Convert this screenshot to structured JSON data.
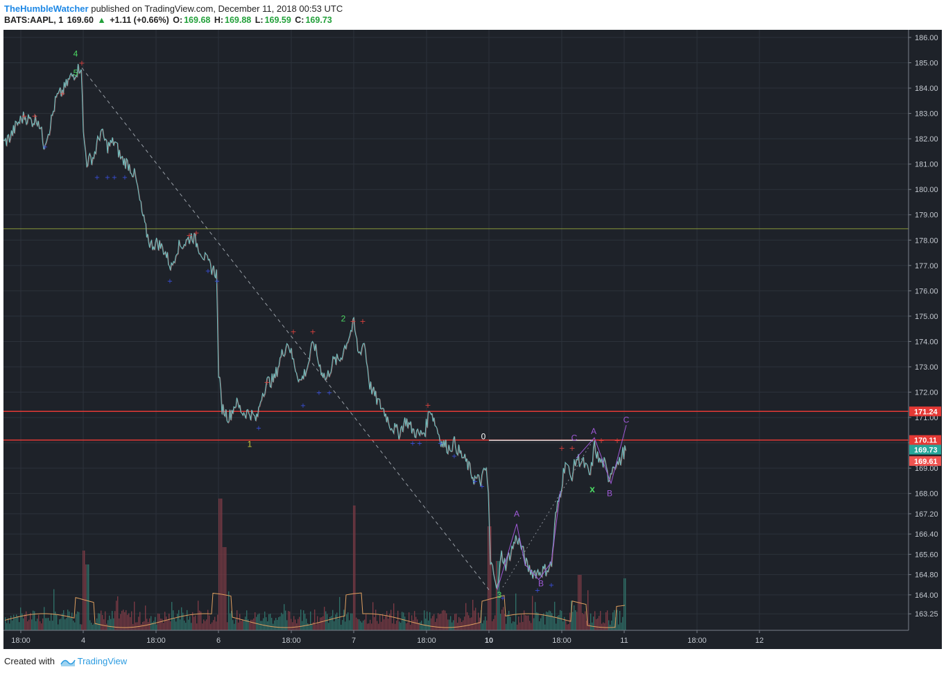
{
  "header": {
    "author": "TheHumbleWatcher",
    "publish_text": "published on TradingView.com, December 11, 2018 00:53 UTC"
  },
  "quote": {
    "symbol": "BATS:AAPL, 1",
    "last": "169.60",
    "change": "+1.11 (+0.66%)",
    "open_label": "O:",
    "open": "169.68",
    "high_label": "H:",
    "high": "169.88",
    "low_label": "L:",
    "low": "169.59",
    "close_label": "C:",
    "close": "169.73"
  },
  "footer": {
    "created_with": "Created with",
    "brand": "TradingView"
  },
  "colors": {
    "background": "#1e2229",
    "line": "#6fc4c4",
    "down_line": "#e08a8a",
    "support": "#e53935",
    "fib_line": "#8a9a3a",
    "wave_green": "#4cd964",
    "wave_yellow": "#c8c83a",
    "wave_purple": "#a05ad8",
    "volume_up": "#2f6e66",
    "volume_down": "#7a3a44",
    "volume_ma": "#e0a060"
  },
  "chart_data": {
    "type": "line",
    "symbol": "AAPL",
    "interval": "1 minute",
    "ylim": [
      162.6,
      186.3
    ],
    "y_ticks": [
      "186.00",
      "185.00",
      "184.00",
      "183.00",
      "182.00",
      "181.00",
      "180.00",
      "179.00",
      "178.00",
      "177.00",
      "176.00",
      "175.00",
      "174.00",
      "173.00",
      "172.00",
      "171.00",
      "170.00",
      "169.00",
      "168.00",
      "167.20",
      "166.40",
      "165.60",
      "164.80",
      "164.00",
      "163.25"
    ],
    "x_ticks": [
      {
        "label": "18:00",
        "bold": false
      },
      {
        "label": "4",
        "bold": false
      },
      {
        "label": "18:00",
        "bold": false
      },
      {
        "label": "6",
        "bold": false
      },
      {
        "label": "18:00",
        "bold": false
      },
      {
        "label": "7",
        "bold": false
      },
      {
        "label": "18:00",
        "bold": false
      },
      {
        "label": "10",
        "bold": true
      },
      {
        "label": "18:00",
        "bold": false
      },
      {
        "label": "11",
        "bold": false
      },
      {
        "label": "18:00",
        "bold": false
      },
      {
        "label": "12",
        "bold": false
      }
    ],
    "price_series": [
      [
        0,
        181.8
      ],
      [
        10,
        182.1
      ],
      [
        20,
        182.6
      ],
      [
        30,
        182.9
      ],
      [
        40,
        182.7
      ],
      [
        50,
        182.8
      ],
      [
        58,
        181.8
      ],
      [
        66,
        182.4
      ],
      [
        76,
        183.6
      ],
      [
        86,
        183.9
      ],
      [
        96,
        184.4
      ],
      [
        106,
        184.7
      ],
      [
        112,
        184.9
      ],
      [
        115,
        182.2
      ],
      [
        120,
        181.1
      ],
      [
        130,
        181.3
      ],
      [
        140,
        182.3
      ],
      [
        150,
        181.7
      ],
      [
        160,
        181.9
      ],
      [
        170,
        181.2
      ],
      [
        180,
        181.0
      ],
      [
        190,
        180.5
      ],
      [
        198,
        179.3
      ],
      [
        205,
        178.4
      ],
      [
        212,
        177.8
      ],
      [
        222,
        177.9
      ],
      [
        232,
        177.6
      ],
      [
        242,
        176.9
      ],
      [
        250,
        177.7
      ],
      [
        262,
        177.9
      ],
      [
        272,
        178.2
      ],
      [
        282,
        177.7
      ],
      [
        292,
        177.2
      ],
      [
        300,
        176.9
      ],
      [
        307,
        176.7
      ],
      [
        310,
        172.8
      ],
      [
        315,
        171.4
      ],
      [
        325,
        171.0
      ],
      [
        335,
        171.6
      ],
      [
        345,
        171.2
      ],
      [
        355,
        171.2
      ],
      [
        365,
        170.9
      ],
      [
        372,
        171.9
      ],
      [
        380,
        172.4
      ],
      [
        390,
        172.5
      ],
      [
        400,
        173.4
      ],
      [
        410,
        174.0
      ],
      [
        418,
        173.2
      ],
      [
        428,
        172.4
      ],
      [
        438,
        173.0
      ],
      [
        447,
        174.0
      ],
      [
        455,
        173.1
      ],
      [
        465,
        172.5
      ],
      [
        475,
        173.2
      ],
      [
        485,
        173.3
      ],
      [
        495,
        174.0
      ],
      [
        505,
        174.7
      ],
      [
        512,
        173.5
      ],
      [
        520,
        174.0
      ],
      [
        528,
        172.3
      ],
      [
        538,
        171.7
      ],
      [
        548,
        171.3
      ],
      [
        558,
        170.7
      ],
      [
        570,
        170.4
      ],
      [
        580,
        170.9
      ],
      [
        590,
        170.5
      ],
      [
        600,
        170.3
      ],
      [
        608,
        170.5
      ],
      [
        615,
        171.4
      ],
      [
        622,
        170.8
      ],
      [
        632,
        170.0
      ],
      [
        642,
        169.8
      ],
      [
        650,
        170.0
      ],
      [
        658,
        169.6
      ],
      [
        668,
        169.2
      ],
      [
        678,
        168.6
      ],
      [
        688,
        168.5
      ],
      [
        696,
        169.0
      ],
      [
        699,
        167.9
      ],
      [
        702,
        165.2
      ],
      [
        708,
        164.9
      ],
      [
        712,
        164.2
      ],
      [
        718,
        165.6
      ],
      [
        724,
        165.2
      ],
      [
        730,
        165.6
      ],
      [
        740,
        166.3
      ],
      [
        748,
        165.8
      ],
      [
        755,
        165.1
      ],
      [
        763,
        164.9
      ],
      [
        772,
        164.9
      ],
      [
        782,
        165.0
      ],
      [
        790,
        165.2
      ],
      [
        796,
        167.1
      ],
      [
        803,
        168.1
      ],
      [
        810,
        169.3
      ],
      [
        818,
        168.6
      ],
      [
        826,
        169.4
      ],
      [
        836,
        169.2
      ],
      [
        846,
        168.7
      ],
      [
        852,
        169.9
      ],
      [
        858,
        169.3
      ],
      [
        866,
        169.2
      ],
      [
        872,
        168.6
      ],
      [
        880,
        169.2
      ],
      [
        888,
        169.2
      ],
      [
        893,
        169.6
      ],
      [
        897,
        169.7
      ]
    ],
    "horizontal_lines": [
      {
        "price": 178.45,
        "color": "fib_line"
      },
      {
        "price": 171.24,
        "label": "171.24",
        "color": "support"
      },
      {
        "price": 170.11,
        "label": "170.11",
        "color": "support"
      }
    ],
    "price_labels": [
      {
        "price": 169.73,
        "label": "169.73",
        "color": "#26a69a"
      },
      {
        "price": 169.61,
        "label": "169.61",
        "color": "#ef5350"
      }
    ],
    "annotations": [
      {
        "text": "4",
        "x": 104,
        "price": 185.35,
        "color": "wave_green"
      },
      {
        "text": "5",
        "x": 104,
        "price": 184.6,
        "color": "wave_green"
      },
      {
        "text": "2",
        "x": 490,
        "price": 174.9,
        "color": "wave_green"
      },
      {
        "text": "1",
        "x": 355,
        "price": 169.95,
        "color": "wave_yellow"
      },
      {
        "text": "3",
        "x": 715,
        "price": 164.0,
        "color": "wave_green"
      },
      {
        "text": "0",
        "x": 692,
        "price": 170.25,
        "color": "#ffffff"
      },
      {
        "text": "A",
        "x": 740,
        "price": 167.2,
        "color": "wave_purple"
      },
      {
        "text": "B",
        "x": 775,
        "price": 164.45,
        "color": "wave_purple"
      },
      {
        "text": "C",
        "x": 823,
        "price": 170.2,
        "color": "wave_purple"
      },
      {
        "text": "A",
        "x": 851,
        "price": 170.45,
        "color": "wave_purple"
      },
      {
        "text": "B",
        "x": 874,
        "price": 168.0,
        "color": "wave_purple"
      },
      {
        "text": "C",
        "x": 898,
        "price": 170.9,
        "color": "wave_purple"
      },
      {
        "text": "x",
        "x": 849,
        "price": 168.15,
        "color": "wave_green"
      }
    ],
    "trendline": {
      "from": [
        113,
        184.8
      ],
      "to": [
        700,
        164.2
      ]
    },
    "grid": true
  }
}
